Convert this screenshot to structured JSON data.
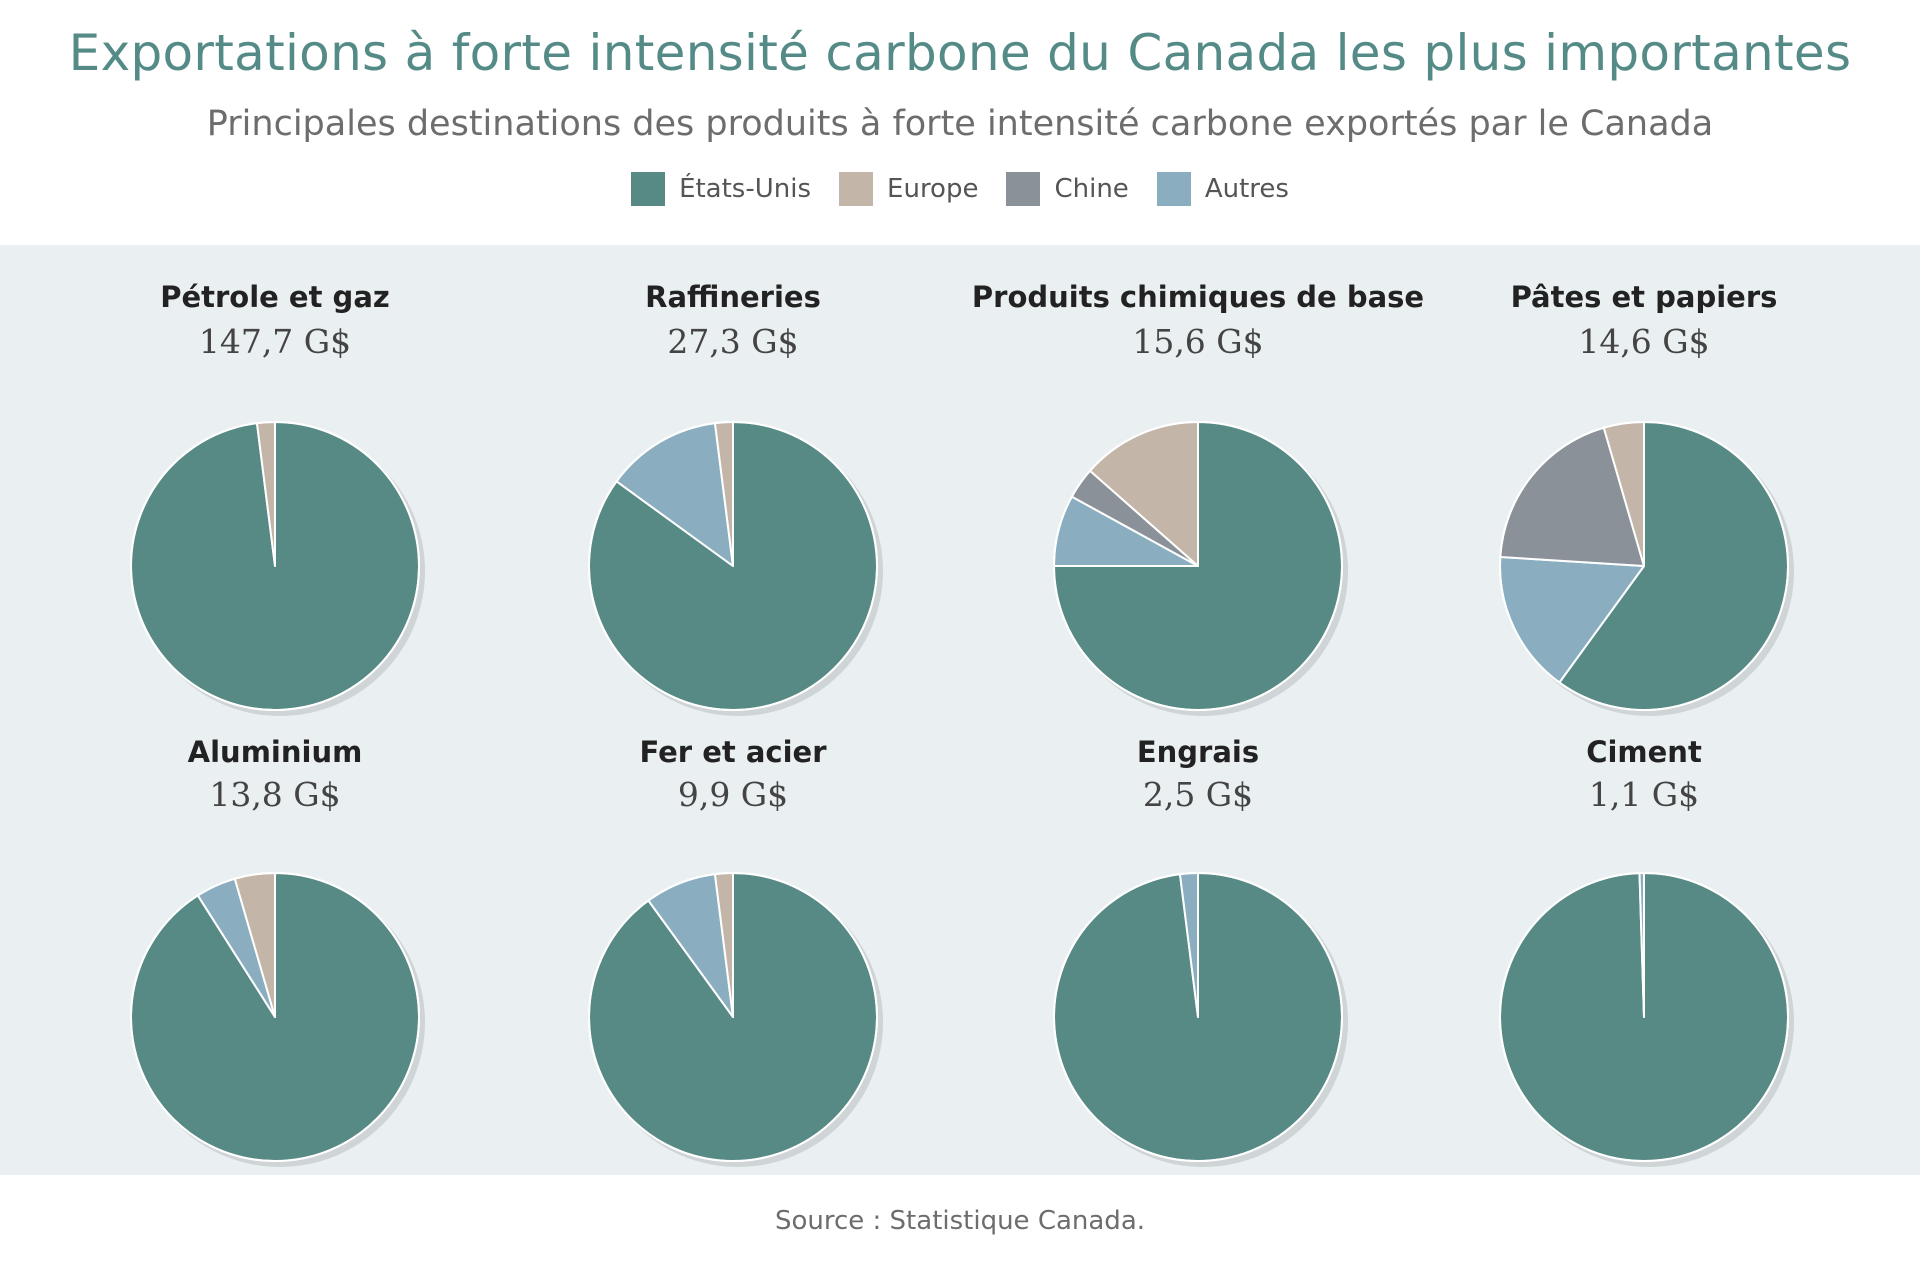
{
  "title": "Exportations à forte intensité carbone du Canada les plus importantes",
  "subtitle": "Principales destinations des produits à forte intensité carbone exportés par le Canada",
  "legend": [
    {
      "label": "États-Unis",
      "color": "#578985"
    },
    {
      "label": "Europe",
      "color": "#c3b5a7"
    },
    {
      "label": "Chine",
      "color": "#8a9199"
    },
    {
      "label": "Autres",
      "color": "#8aaec0"
    }
  ],
  "source": "Source : Statistique Canada.",
  "chart_data": {
    "type": "pie",
    "series_names": [
      "États-Unis",
      "Europe",
      "Chine",
      "Autres"
    ],
    "charts": [
      {
        "name": "Pétrole et gaz",
        "total": "147,7 G$",
        "values": [
          98,
          2,
          0,
          0
        ]
      },
      {
        "name": "Raffineries",
        "total": "27,3 G$",
        "values": [
          85,
          2,
          0,
          13
        ]
      },
      {
        "name": "Produits chimiques de base",
        "total": "15,6 G$",
        "values": [
          75,
          13.5,
          3.5,
          8
        ]
      },
      {
        "name": "Pâtes et papiers",
        "total": "14,6 G$",
        "values": [
          60,
          4.5,
          19.5,
          16
        ]
      },
      {
        "name": "Aluminium",
        "total": "13,8 G$",
        "values": [
          91,
          4.5,
          0,
          4.5
        ]
      },
      {
        "name": "Fer et acier",
        "total": "9,9 G$",
        "values": [
          90,
          2,
          0,
          8
        ]
      },
      {
        "name": "Engrais",
        "total": "2,5 G$",
        "values": [
          98,
          0,
          0,
          2
        ]
      },
      {
        "name": "Ciment",
        "total": "1,1 G$",
        "values": [
          99.5,
          0,
          0,
          0.5
        ]
      }
    ]
  }
}
